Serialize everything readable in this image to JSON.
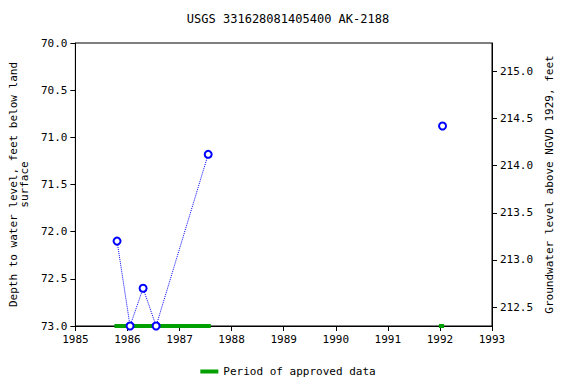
{
  "chart_data": {
    "type": "line",
    "title": "USGS 331628081405400 AK-2188",
    "x_label": "",
    "y_label": "Depth to water level, feet below land\nsurface",
    "y2_label": "Groundwater level above NGVD 1929, feet",
    "x": [
      1985.8,
      1986.05,
      1986.3,
      1986.55,
      1987.55,
      null,
      1992.05
    ],
    "series": [
      {
        "color": "#0000ff",
        "marker": "circle_open",
        "line_style": "dotted",
        "values": [
          72.1,
          73.0,
          72.6,
          73.0,
          71.18,
          null,
          70.88
        ]
      }
    ],
    "approved_periods": {
      "name": "Period of approved data",
      "color": "#00a000",
      "ranges": [
        [
          1985.75,
          1987.6
        ],
        [
          1991.98,
          1992.08
        ]
      ]
    },
    "xlim": [
      1985,
      1993
    ],
    "xticks": [
      1985,
      1986,
      1987,
      1988,
      1989,
      1990,
      1991,
      1992,
      1993
    ],
    "ylim": [
      70.0,
      73.0
    ],
    "yticks": [
      {
        "value": 70.0,
        "label": "70.0"
      },
      {
        "value": 70.5,
        "label": "70.5"
      },
      {
        "value": 71.0,
        "label": "71.0"
      },
      {
        "value": 71.5,
        "label": "71.5"
      },
      {
        "value": 72.0,
        "label": "72.0"
      },
      {
        "value": 72.5,
        "label": "72.5"
      },
      {
        "value": 73.0,
        "label": "73.0"
      }
    ],
    "y2lim": [
      212.3,
      215.3
    ],
    "y2ticks": [
      {
        "value": 212.5,
        "label": "212.5"
      },
      {
        "value": 213.0,
        "label": "213.0"
      },
      {
        "value": 213.5,
        "label": "213.5"
      },
      {
        "value": 214.0,
        "label": "214.0"
      },
      {
        "value": 214.5,
        "label": "214.5"
      },
      {
        "value": 215.0,
        "label": "215.0"
      }
    ],
    "grid": false,
    "legend": "bottom"
  }
}
